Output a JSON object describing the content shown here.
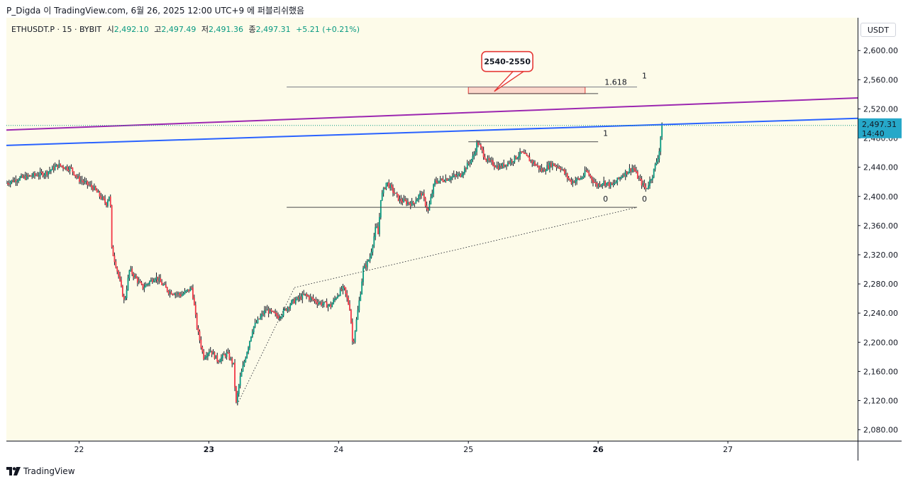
{
  "caption": "P_Digda 이 TradingView.com, 6월 26, 2025 12:00 UTC+9 에 퍼블리쉬했음",
  "header": {
    "symbol": "ETHUSDT.P · 15 · BYBIT",
    "open_label": "시",
    "open_value": "2,492.10",
    "high_label": "고",
    "high_value": "2,497.49",
    "low_label": "저",
    "low_value": "2,491.36",
    "close_label": "종",
    "close_value": "2,497.31",
    "change": "+5.21 (+0.21%)"
  },
  "currency_button": "USDT",
  "price_badge": {
    "price": "2,497.31",
    "countdown": "14:40"
  },
  "annotation_bubble": "2540-2550",
  "fib_labels": {
    "level_1618": "1.618",
    "level_1_top": "1",
    "level_1_mid": "1",
    "level_0_a": "0",
    "level_0_b": "0"
  },
  "footer": {
    "brand": "TradingView"
  },
  "colors": {
    "background": "#fdfbe9",
    "up": "#089981",
    "down": "#f23645",
    "purple_line": "#9c27b0",
    "blue_line": "#2962ff",
    "badge": "#26a8c9",
    "bubble": "#e53935"
  },
  "chart_data": {
    "type": "candlestick",
    "title": "ETHUSDT.P · 15 · BYBIT",
    "xlabel": "",
    "ylabel": "USDT",
    "y_ticks": [
      "2,600.00",
      "2,560.00",
      "2,520.00",
      "2,480.00",
      "2,440.00",
      "2,400.00",
      "2,360.00",
      "2,320.00",
      "2,280.00",
      "2,240.00",
      "2,200.00",
      "2,160.00",
      "2,120.00",
      "2,080.00"
    ],
    "ylim": [
      2065,
      2645
    ],
    "x_ticks": [
      {
        "label": "22",
        "day": 22
      },
      {
        "label": "23",
        "day": 23
      },
      {
        "label": "24",
        "day": 24
      },
      {
        "label": "25",
        "day": 25
      },
      {
        "label": "26",
        "day": 26
      },
      {
        "label": "27",
        "day": 27
      }
    ],
    "xlim": [
      21.44,
      28.0
    ],
    "last_price": 2497.31,
    "price_path": [
      [
        21.44,
        2418
      ],
      [
        21.55,
        2425
      ],
      [
        21.75,
        2432
      ],
      [
        21.85,
        2443
      ],
      [
        21.95,
        2438
      ],
      [
        22.0,
        2425
      ],
      [
        22.12,
        2412
      ],
      [
        22.22,
        2390
      ],
      [
        22.25,
        2405
      ],
      [
        22.26,
        2330
      ],
      [
        22.31,
        2295
      ],
      [
        22.36,
        2255
      ],
      [
        22.4,
        2300
      ],
      [
        22.5,
        2275
      ],
      [
        22.6,
        2290
      ],
      [
        22.7,
        2270
      ],
      [
        22.8,
        2265
      ],
      [
        22.88,
        2275
      ],
      [
        22.92,
        2220
      ],
      [
        22.97,
        2180
      ],
      [
        23.02,
        2190
      ],
      [
        23.08,
        2175
      ],
      [
        23.15,
        2185
      ],
      [
        23.2,
        2170
      ],
      [
        23.22,
        2115
      ],
      [
        23.25,
        2150
      ],
      [
        23.3,
        2185
      ],
      [
        23.35,
        2220
      ],
      [
        23.45,
        2245
      ],
      [
        23.55,
        2235
      ],
      [
        23.65,
        2255
      ],
      [
        23.75,
        2265
      ],
      [
        23.85,
        2255
      ],
      [
        23.95,
        2250
      ],
      [
        24.0,
        2265
      ],
      [
        24.05,
        2275
      ],
      [
        24.1,
        2245
      ],
      [
        24.12,
        2195
      ],
      [
        24.18,
        2270
      ],
      [
        24.2,
        2300
      ],
      [
        24.25,
        2315
      ],
      [
        24.3,
        2360
      ],
      [
        24.32,
        2345
      ],
      [
        24.33,
        2395
      ],
      [
        24.38,
        2420
      ],
      [
        24.48,
        2395
      ],
      [
        24.58,
        2390
      ],
      [
        24.65,
        2405
      ],
      [
        24.7,
        2380
      ],
      [
        24.75,
        2420
      ],
      [
        24.85,
        2425
      ],
      [
        24.95,
        2430
      ],
      [
        25.05,
        2455
      ],
      [
        25.08,
        2475
      ],
      [
        25.15,
        2450
      ],
      [
        25.25,
        2440
      ],
      [
        25.35,
        2450
      ],
      [
        25.42,
        2460
      ],
      [
        25.52,
        2445
      ],
      [
        25.58,
        2435
      ],
      [
        25.65,
        2445
      ],
      [
        25.72,
        2440
      ],
      [
        25.8,
        2420
      ],
      [
        25.88,
        2425
      ],
      [
        25.92,
        2435
      ],
      [
        26.0,
        2415
      ],
      [
        26.05,
        2420
      ],
      [
        26.12,
        2415
      ],
      [
        26.2,
        2430
      ],
      [
        26.28,
        2440
      ],
      [
        26.32,
        2425
      ],
      [
        26.38,
        2410
      ],
      [
        26.43,
        2430
      ],
      [
        26.48,
        2460
      ],
      [
        26.5,
        2497
      ]
    ],
    "lines": [
      {
        "name": "purple-trendline",
        "color": "#9c27b0",
        "p1": [
          21.44,
          2491
        ],
        "p2": [
          28.0,
          2535
        ]
      },
      {
        "name": "blue-trendline",
        "color": "#2962ff",
        "p1": [
          21.44,
          2470
        ],
        "p2": [
          28.0,
          2507
        ]
      },
      {
        "name": "fib-1618-line",
        "color": "#787b86",
        "p1": [
          23.6,
          2550
        ],
        "p2": [
          26.3,
          2550
        ]
      },
      {
        "name": "fib-1618-inner-line",
        "color": "#4a4a4a",
        "p1": [
          25.0,
          2541
        ],
        "p2": [
          26.0,
          2541
        ]
      },
      {
        "name": "fib-1-line",
        "color": "#4a4a4a",
        "p1": [
          25.0,
          2475
        ],
        "p2": [
          26.0,
          2475
        ]
      },
      {
        "name": "fib-0-line",
        "color": "#4a4a4a",
        "p1": [
          23.6,
          2385
        ],
        "p2": [
          26.3,
          2385
        ]
      }
    ],
    "dotted_lines": [
      {
        "name": "projection-line-a",
        "p1": [
          23.22,
          2115
        ],
        "p2": [
          23.66,
          2275
        ]
      },
      {
        "name": "projection-line-b",
        "p1": [
          23.66,
          2275
        ],
        "p2": [
          26.3,
          2385
        ]
      }
    ],
    "zone": {
      "from_x": 25.0,
      "to_x": 25.9,
      "from_y": 2541,
      "to_y": 2550,
      "label": "2540-2550"
    }
  }
}
